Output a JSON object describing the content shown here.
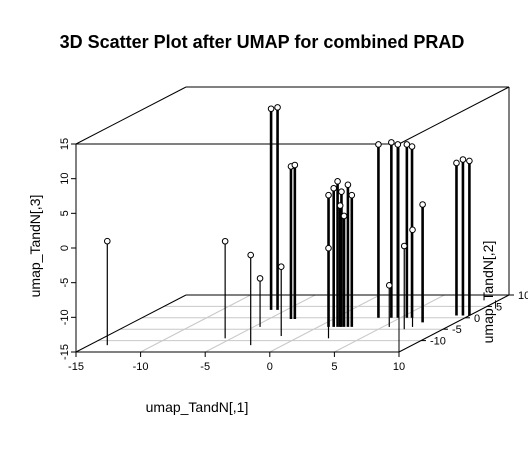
{
  "chart_data": {
    "type": "scatter",
    "title": "3D Scatter Plot after UMAP for combined PRAD",
    "xlabel": "umap_TandN[,1]",
    "ylabel": "umap_TandN[,2]",
    "zlabel": "umap_TandN[,3]",
    "xlim": [
      -15,
      10
    ],
    "ylim": [
      -15,
      10
    ],
    "zlim": [
      -15,
      15
    ],
    "x_ticks": [
      "-15",
      "-10",
      "-5",
      "0",
      "5",
      "10"
    ],
    "y_ticks": [
      "-10",
      "-5",
      "0",
      "5",
      "10"
    ],
    "z_ticks": [
      "-15",
      "-10",
      "-5",
      "0",
      "5",
      "10",
      "15"
    ],
    "type_detail": "h",
    "grid": true,
    "points": [
      {
        "x": -13.6,
        "y": -12,
        "z": 0
      },
      {
        "x": -5.5,
        "y": -9,
        "z": -1
      },
      {
        "x": -2.5,
        "y": -12,
        "z": -2
      },
      {
        "x": -1.5,
        "y": -8,
        "z": -5
      },
      {
        "x": -4.5,
        "y": -4,
        "z": -8
      },
      {
        "x": -6.2,
        "y": 3.5,
        "z": 14
      },
      {
        "x": -5.7,
        "y": 3.5,
        "z": 14.2
      },
      {
        "x": -3.3,
        "y": -0.5,
        "z": 7
      },
      {
        "x": -3.0,
        "y": -0.5,
        "z": 7.2
      },
      {
        "x": 0.8,
        "y": -4,
        "z": 4
      },
      {
        "x": 1.2,
        "y": -4,
        "z": 5
      },
      {
        "x": 1.5,
        "y": -4,
        "z": 6
      },
      {
        "x": 1.8,
        "y": -4,
        "z": 4.5
      },
      {
        "x": 2.6,
        "y": -4,
        "z": 4
      },
      {
        "x": 2.3,
        "y": -4,
        "z": 5.5
      },
      {
        "x": 1.7,
        "y": -4,
        "z": 2.5
      },
      {
        "x": 2.0,
        "y": -4,
        "z": 1
      },
      {
        "x": 2.5,
        "y": -9,
        "z": -2
      },
      {
        "x": 3.3,
        "y": 0,
        "z": 10
      },
      {
        "x": 4.3,
        "y": 0,
        "z": 10.3
      },
      {
        "x": 4.8,
        "y": 0,
        "z": 10
      },
      {
        "x": 5.5,
        "y": 0,
        "z": 10
      },
      {
        "x": 5.9,
        "y": 0,
        "z": 9.7
      },
      {
        "x": 5.5,
        "y": -4,
        "z": -9
      },
      {
        "x": 7.4,
        "y": -2,
        "z": 2
      },
      {
        "x": 7.3,
        "y": -4,
        "z": -1
      },
      {
        "x": 7.0,
        "y": -5,
        "z": -3
      },
      {
        "x": 9.0,
        "y": 1,
        "z": 7
      },
      {
        "x": 9.5,
        "y": 1,
        "z": 7.5
      },
      {
        "x": 10.0,
        "y": 1,
        "z": 7.3
      }
    ]
  }
}
